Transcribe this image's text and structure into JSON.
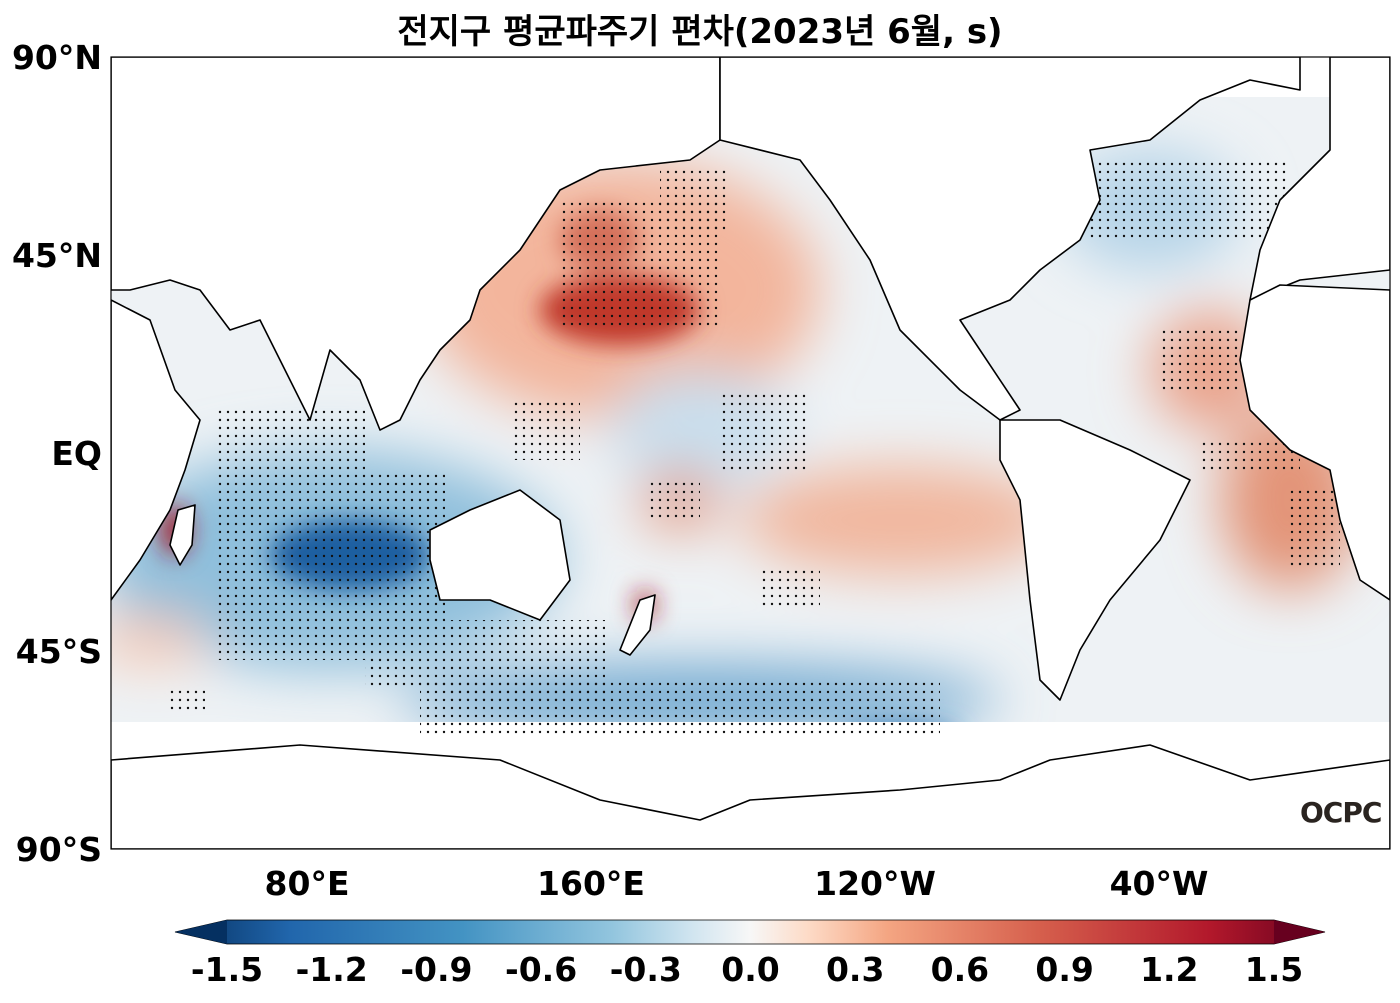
{
  "title": "전지구 평균파주기 편차(2023년 6월, s)",
  "map": {
    "lat_labels": [
      "90°N",
      "45°N",
      "EQ",
      "45°S",
      "90°S"
    ],
    "lon_labels": [
      "80°E",
      "160°E",
      "120°W",
      "40°W"
    ],
    "logo_text": "OCPC",
    "stippling": "significant anomaly regions (dots)"
  },
  "colorbar": {
    "min": -1.5,
    "max": 1.5,
    "extend": "both",
    "colormap": "RdBu_r",
    "ticks": [
      "-1.5",
      "-1.2",
      "-0.9",
      "-0.6",
      "-0.3",
      "0.0",
      "0.3",
      "0.6",
      "0.9",
      "1.2",
      "1.5"
    ],
    "colors": {
      "low": "#053061",
      "mid": "#f7f7f7",
      "high": "#67001f"
    }
  }
}
